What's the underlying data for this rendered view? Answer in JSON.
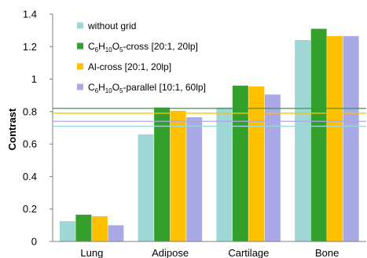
{
  "chart_data": {
    "type": "bar",
    "categories": [
      "Lung",
      "Adipose",
      "Cartilage",
      "Bone"
    ],
    "ylabel": "Contrast",
    "xlabel": "",
    "ylim": [
      0,
      1.4
    ],
    "yticks": [
      "0",
      "0.2",
      "0.4",
      "0.6",
      "0.8",
      "1",
      "1.2",
      "1.4"
    ],
    "grid": false,
    "legend_position": "top-left",
    "series": [
      {
        "name": "without grid",
        "color": "#9fd6d6",
        "values": [
          0.125,
          0.66,
          0.825,
          1.24
        ]
      },
      {
        "name": "C6H10O5-cross [20:1, 20lp]",
        "color": "#33a02c",
        "values": [
          0.165,
          0.825,
          0.96,
          1.31
        ]
      },
      {
        "name": "Al-cross [20:1, 20lp]",
        "color": "#ffc000",
        "values": [
          0.155,
          0.805,
          0.955,
          1.265
        ]
      },
      {
        "name": "C6H10O5-parallel [10:1, 60lp]",
        "color": "#a9a9e6",
        "values": [
          0.1,
          0.765,
          0.905,
          1.265
        ]
      }
    ],
    "reference_lines": [
      {
        "value": 0.82,
        "color": "#33a02c"
      },
      {
        "value": 0.79,
        "color": "#ffc000"
      },
      {
        "value": 0.74,
        "color": "#a9a9e6"
      },
      {
        "value": 0.71,
        "color": "#9fd6d6"
      }
    ]
  }
}
